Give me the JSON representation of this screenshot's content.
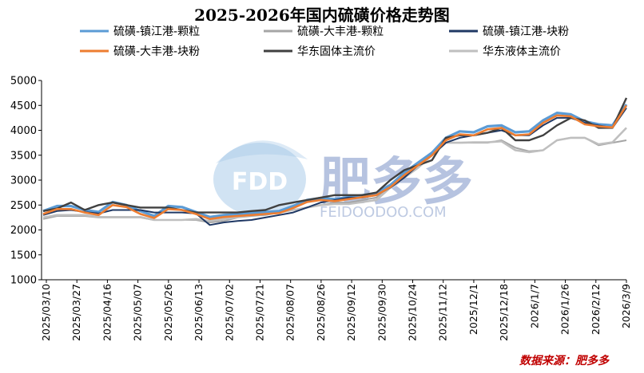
{
  "chart_data": {
    "type": "line",
    "title": "2025-2026年国内硫磺价格走势图",
    "xlabel": "",
    "ylabel": "",
    "ylim": [
      1000,
      5000
    ],
    "yticks": [
      1000,
      1500,
      2000,
      2500,
      3000,
      3500,
      4000,
      4500,
      5000
    ],
    "xticks": [
      "2025/03/10",
      "2025/03/27",
      "2025/04/16",
      "2025/05/07",
      "2025/05/26",
      "2025/06/13",
      "2025/07/02",
      "2025/07/21",
      "2025/08/07",
      "2025/08/26",
      "2025/09/12",
      "2025/09/30",
      "2025/10/24",
      "2025/11/12",
      "2025/12/1",
      "2025/12/18",
      "2026/1/7",
      "2026/1/26",
      "2026/2/12",
      "2026/3/9"
    ],
    "legend_position": "top",
    "series": [
      {
        "name": "硫磺-镇江港-颗粒",
        "color": "#5b9bd5",
        "width": 3.2,
        "values": [
          2380,
          2480,
          2480,
          2400,
          2360,
          2560,
          2500,
          2380,
          2280,
          2480,
          2460,
          2360,
          2260,
          2300,
          2320,
          2340,
          2360,
          2380,
          2480,
          2600,
          2640,
          2620,
          2660,
          2700,
          2740,
          2900,
          3150,
          3350,
          3550,
          3850,
          3980,
          3960,
          4080,
          4100,
          3960,
          3980,
          4200,
          4350,
          4320,
          4180,
          4120,
          4100,
          4520
        ]
      },
      {
        "name": "硫磺-大丰港-颗粒",
        "color": "#a5a5a5",
        "width": 2.0,
        "values": [
          2220,
          2280,
          2280,
          2280,
          2250,
          2250,
          2250,
          2250,
          2200,
          2200,
          2200,
          2200,
          2150,
          2180,
          2250,
          2280,
          2300,
          2350,
          2400,
          2450,
          2500,
          2550,
          2550,
          2600,
          2650,
          2900,
          3100,
          3350,
          3550,
          3750,
          3750,
          3750,
          3750,
          3800,
          3650,
          3580,
          3600,
          3800,
          3850,
          3850,
          3700,
          3750,
          3800
        ]
      },
      {
        "name": "硫磺-镇江港-块粉",
        "color": "#1f3864",
        "width": 2.0,
        "values": [
          2300,
          2380,
          2400,
          2360,
          2330,
          2400,
          2400,
          2400,
          2350,
          2350,
          2350,
          2330,
          2100,
          2150,
          2180,
          2200,
          2250,
          2300,
          2350,
          2450,
          2550,
          2600,
          2650,
          2650,
          2700,
          2850,
          3050,
          3300,
          3500,
          3750,
          3850,
          3900,
          3950,
          4000,
          3900,
          3900,
          4100,
          4250,
          4250,
          4150,
          4100,
          4050,
          4450
        ]
      },
      {
        "name": "硫磺-大丰港-块粉",
        "color": "#ed7d31",
        "width": 2.6,
        "values": [
          2320,
          2420,
          2420,
          2350,
          2300,
          2500,
          2460,
          2320,
          2240,
          2420,
          2400,
          2320,
          2220,
          2260,
          2280,
          2300,
          2320,
          2340,
          2440,
          2560,
          2600,
          2580,
          2620,
          2660,
          2700,
          2860,
          3100,
          3300,
          3500,
          3800,
          3920,
          3900,
          4020,
          4050,
          3900,
          3920,
          4150,
          4300,
          4280,
          4120,
          4080,
          4060,
          4500
        ]
      },
      {
        "name": "华东固体主流价",
        "color": "#404040",
        "width": 2.4,
        "values": [
          2380,
          2430,
          2550,
          2400,
          2500,
          2550,
          2500,
          2450,
          2450,
          2450,
          2400,
          2350,
          2350,
          2350,
          2350,
          2380,
          2400,
          2500,
          2550,
          2600,
          2650,
          2700,
          2700,
          2700,
          2750,
          3000,
          3200,
          3300,
          3400,
          3850,
          3900,
          3900,
          3950,
          4050,
          3800,
          3800,
          3900,
          4100,
          4250,
          4200,
          4050,
          4050,
          4650
        ]
      },
      {
        "name": "华东液体主流价",
        "color": "#bfbfbf",
        "width": 2.6,
        "values": [
          2250,
          2300,
          2300,
          2300,
          2260,
          2260,
          2260,
          2260,
          2200,
          2200,
          2200,
          2220,
          2180,
          2220,
          2260,
          2300,
          2320,
          2350,
          2400,
          2450,
          2500,
          2520,
          2520,
          2560,
          2600,
          2850,
          3050,
          3250,
          3500,
          3750,
          3750,
          3760,
          3760,
          3780,
          3600,
          3560,
          3600,
          3800,
          3850,
          3850,
          3720,
          3760,
          4050
        ]
      }
    ]
  },
  "watermark": {
    "brand_cn": "肥多多",
    "badge": "FDD",
    "domain": "FEIDOODOO.COM"
  },
  "source": "数据来源：肥多多"
}
